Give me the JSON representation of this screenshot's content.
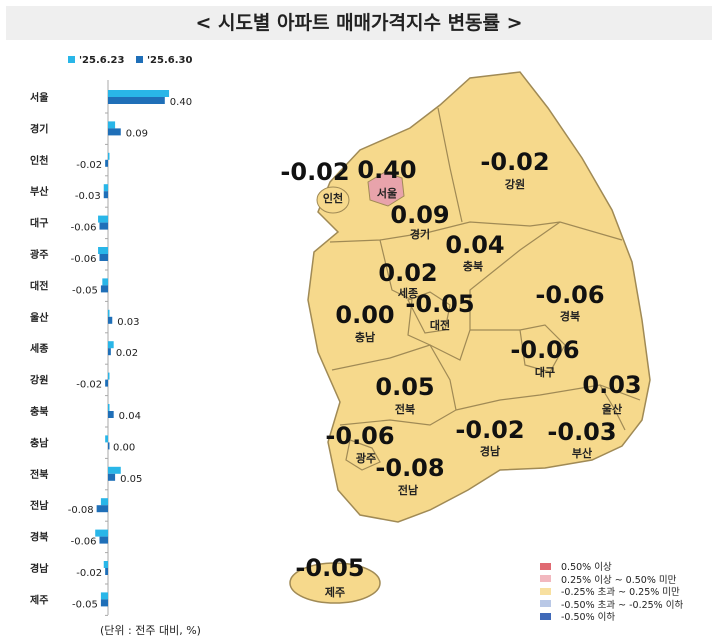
{
  "title": "< 시도별 아파트 매매가격지수 변동률 >",
  "unit_note": "(단위 : 전주 대비, %)",
  "colors": {
    "series1": "#29b6e8",
    "series2": "#1f6fb8",
    "map_fill": "#f6d98c",
    "map_border": "#a08a55",
    "seoul_fill": "#e8a3ab"
  },
  "chart_data": {
    "type": "bar",
    "orientation": "horizontal",
    "categories": [
      "서울",
      "경기",
      "인천",
      "부산",
      "대구",
      "광주",
      "대전",
      "울산",
      "세종",
      "강원",
      "충북",
      "충남",
      "전북",
      "전남",
      "경북",
      "경남",
      "제주"
    ],
    "series": [
      {
        "name": "'25.6.23",
        "values": [
          0.43,
          0.05,
          0.01,
          -0.03,
          -0.07,
          -0.07,
          -0.04,
          0.0,
          0.04,
          0.0,
          0.01,
          -0.02,
          0.09,
          -0.05,
          -0.09,
          -0.03,
          -0.05
        ]
      },
      {
        "name": "'25.6.30",
        "values": [
          0.4,
          0.09,
          -0.02,
          -0.03,
          -0.06,
          -0.06,
          -0.05,
          0.03,
          0.02,
          -0.02,
          0.04,
          0.0,
          0.05,
          -0.08,
          -0.06,
          -0.02,
          -0.05
        ],
        "labels": [
          "0.40",
          "0.09",
          "-0.02",
          "-0.03",
          "-0.06",
          "-0.06",
          "-0.05",
          "0.03",
          "0.02",
          "-0.02",
          "0.04",
          "0.00",
          "0.05",
          "-0.08",
          "-0.06",
          "-0.02",
          "-0.05"
        ]
      }
    ],
    "legend": "top"
  },
  "map": {
    "regions": [
      {
        "name": "인천",
        "value": "-0.02"
      },
      {
        "name": "서울",
        "value": "0.40"
      },
      {
        "name": "경기",
        "value": "0.09"
      },
      {
        "name": "강원",
        "value": "-0.02"
      },
      {
        "name": "충북",
        "value": "0.04"
      },
      {
        "name": "세종",
        "value": "0.02"
      },
      {
        "name": "대전",
        "value": "-0.05"
      },
      {
        "name": "충남",
        "value": "0.00"
      },
      {
        "name": "경북",
        "value": "-0.06"
      },
      {
        "name": "대구",
        "value": "-0.06"
      },
      {
        "name": "울산",
        "value": "0.03"
      },
      {
        "name": "전북",
        "value": "0.05"
      },
      {
        "name": "경남",
        "value": "-0.02"
      },
      {
        "name": "부산",
        "value": "-0.03"
      },
      {
        "name": "광주",
        "value": "-0.06"
      },
      {
        "name": "전남",
        "value": "-0.08"
      },
      {
        "name": "제주",
        "value": "-0.05"
      }
    ]
  },
  "map_legend": [
    {
      "label": "0.50% 이상",
      "color": "#e06a72"
    },
    {
      "label": "0.25% 이상 ~ 0.50% 미만",
      "color": "#f2b8bf"
    },
    {
      "label": "-0.25% 초과 ~ 0.25% 미만",
      "color": "#f8e0a0"
    },
    {
      "label": "-0.50% 초과 ~ -0.25% 이하",
      "color": "#b9c8e6"
    },
    {
      "label": "-0.50% 이하",
      "color": "#3f69b8"
    }
  ]
}
